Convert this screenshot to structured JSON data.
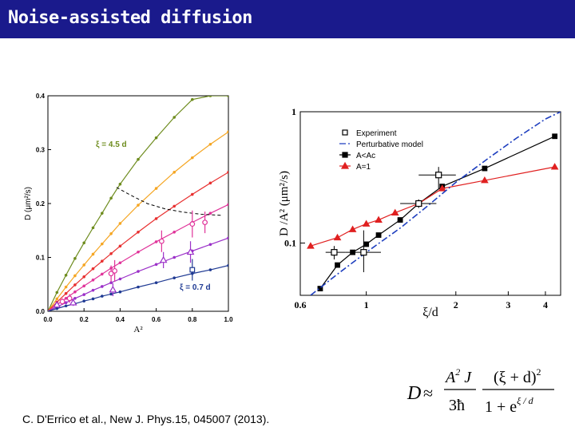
{
  "slide": {
    "title": "Noise-assisted diffusion",
    "citation": "C. D'Errico et al., New J. Phys.15, 045007 (2013).",
    "title_bar_color": "#1a1a8c"
  },
  "formula": {
    "lhs": "D",
    "approx": "≈",
    "num1": "A",
    "num1_sup": "2",
    "num1_rest": " J",
    "den1": "3ħ",
    "num2": "(ξ + d)",
    "num2_sup": "2",
    "den2_base": "1 + e",
    "den2_exp": "ξ / d"
  },
  "chart_data": [
    {
      "type": "line",
      "xlabel": "A²",
      "ylabel": "D (μm²/s)",
      "xlim": [
        0,
        1.0
      ],
      "ylim": [
        0,
        0.4
      ],
      "x_ticks": [
        "0.0",
        "0.2",
        "0.4",
        "0.6",
        "0.8",
        "1.0"
      ],
      "y_ticks": [
        "0.0",
        "0.1",
        "0.2",
        "0.3",
        "0.4"
      ],
      "annotations": {
        "top": "ξ = 4.5 d",
        "bottom": "ξ = 0.7 d"
      },
      "series": [
        {
          "color": "#6e8c1e",
          "x": [
            0.0,
            0.05,
            0.1,
            0.15,
            0.2,
            0.25,
            0.3,
            0.35,
            0.4,
            0.5,
            0.6,
            0.7,
            0.8,
            0.9,
            1.0
          ],
          "y": [
            0.0,
            0.035,
            0.067,
            0.098,
            0.127,
            0.155,
            0.182,
            0.21,
            0.236,
            0.282,
            0.322,
            0.36,
            0.393,
            0.4,
            0.4
          ]
        },
        {
          "color": "#f5a623",
          "x": [
            0.0,
            0.05,
            0.1,
            0.15,
            0.2,
            0.25,
            0.3,
            0.35,
            0.4,
            0.5,
            0.6,
            0.7,
            0.8,
            0.9,
            1.0
          ],
          "y": [
            0.0,
            0.023,
            0.045,
            0.066,
            0.086,
            0.106,
            0.125,
            0.144,
            0.163,
            0.197,
            0.228,
            0.258,
            0.285,
            0.31,
            0.333
          ]
        },
        {
          "color": "#e83030",
          "x": [
            0.0,
            0.05,
            0.1,
            0.15,
            0.2,
            0.25,
            0.3,
            0.35,
            0.4,
            0.5,
            0.6,
            0.7,
            0.8,
            0.9,
            1.0
          ],
          "y": [
            0.0,
            0.017,
            0.033,
            0.049,
            0.064,
            0.079,
            0.093,
            0.107,
            0.121,
            0.147,
            0.172,
            0.195,
            0.217,
            0.238,
            0.258
          ]
        },
        {
          "color": "#e0339a",
          "x": [
            0.0,
            0.05,
            0.1,
            0.15,
            0.2,
            0.25,
            0.3,
            0.35,
            0.4,
            0.5,
            0.6,
            0.7,
            0.8,
            0.9,
            1.0
          ],
          "y": [
            0.0,
            0.012,
            0.024,
            0.036,
            0.047,
            0.058,
            0.069,
            0.08,
            0.09,
            0.11,
            0.129,
            0.147,
            0.165,
            0.182,
            0.198
          ]
        },
        {
          "color": "#9b30c8",
          "x": [
            0.0,
            0.05,
            0.1,
            0.15,
            0.2,
            0.25,
            0.3,
            0.35,
            0.4,
            0.5,
            0.6,
            0.7,
            0.8,
            0.9,
            1.0
          ],
          "y": [
            0.0,
            0.008,
            0.016,
            0.024,
            0.031,
            0.039,
            0.046,
            0.053,
            0.06,
            0.074,
            0.087,
            0.1,
            0.112,
            0.124,
            0.136
          ]
        },
        {
          "color": "#1f3a93",
          "x": [
            0.0,
            0.05,
            0.1,
            0.15,
            0.2,
            0.25,
            0.3,
            0.35,
            0.4,
            0.5,
            0.6,
            0.7,
            0.8,
            0.9,
            1.0
          ],
          "y": [
            0.0,
            0.005,
            0.01,
            0.014,
            0.019,
            0.023,
            0.028,
            0.032,
            0.036,
            0.045,
            0.053,
            0.062,
            0.07,
            0.077,
            0.085
          ]
        }
      ],
      "dashed_curve": {
        "x": [
          0.38,
          0.45,
          0.55,
          0.65,
          0.75,
          0.85,
          0.97
        ],
        "y": [
          0.23,
          0.217,
          0.2,
          0.19,
          0.184,
          0.18,
          0.178
        ]
      },
      "experiment": [
        {
          "x": 0.05,
          "y": 0.012,
          "err": 0.005,
          "color": "#9b30c8",
          "marker": "triangle"
        },
        {
          "x": 0.08,
          "y": 0.018,
          "err": 0.006,
          "color": "#e0339a",
          "marker": "circle"
        },
        {
          "x": 0.12,
          "y": 0.024,
          "err": 0.008,
          "color": "#e0339a",
          "marker": "circle"
        },
        {
          "x": 0.14,
          "y": 0.016,
          "err": 0.006,
          "color": "#9b30c8",
          "marker": "triangle"
        },
        {
          "x": 0.35,
          "y": 0.07,
          "err": 0.015,
          "color": "#e0339a",
          "marker": "circle"
        },
        {
          "x": 0.37,
          "y": 0.075,
          "err": 0.02,
          "color": "#e0339a",
          "marker": "circle"
        },
        {
          "x": 0.36,
          "y": 0.04,
          "err": 0.012,
          "color": "#9b30c8",
          "marker": "triangle"
        },
        {
          "x": 0.63,
          "y": 0.13,
          "err": 0.02,
          "color": "#e0339a",
          "marker": "circle"
        },
        {
          "x": 0.64,
          "y": 0.095,
          "err": 0.015,
          "color": "#9b30c8",
          "marker": "triangle"
        },
        {
          "x": 0.8,
          "y": 0.162,
          "err": 0.025,
          "color": "#e0339a",
          "marker": "circle"
        },
        {
          "x": 0.79,
          "y": 0.11,
          "err": 0.02,
          "color": "#9b30c8",
          "marker": "triangle"
        },
        {
          "x": 0.87,
          "y": 0.165,
          "err": 0.02,
          "color": "#e0339a",
          "marker": "circle"
        },
        {
          "x": 0.8,
          "y": 0.077,
          "err": 0.02,
          "color": "#1f3a93",
          "marker": "square"
        }
      ]
    },
    {
      "type": "line",
      "xlabel": "ξ/d",
      "ylabel": "D /A² (μm²/s)",
      "x_scale": "log",
      "y_scale": "log",
      "xlim": [
        0.6,
        4.5
      ],
      "ylim": [
        0.04,
        1.0
      ],
      "x_ticks": [
        "0.6",
        "1",
        "2",
        "3",
        "4"
      ],
      "y_ticks": [
        "0.1",
        "1"
      ],
      "legend": [
        "Experiment",
        "Perturbative model",
        "A<Ac",
        "A=1"
      ],
      "legend_position": "top-left",
      "series": [
        {
          "name": "A<Ac",
          "color": "#000000",
          "marker": "square",
          "x": [
            0.7,
            0.8,
            0.9,
            1.0,
            1.1,
            1.3,
            1.5,
            1.8,
            2.5,
            4.3
          ],
          "y": [
            0.045,
            0.068,
            0.085,
            0.098,
            0.115,
            0.15,
            0.2,
            0.27,
            0.37,
            0.65
          ]
        },
        {
          "name": "A=1",
          "color": "#e02020",
          "marker": "triangle",
          "x": [
            0.65,
            0.8,
            0.9,
            1.0,
            1.1,
            1.25,
            1.5,
            1.8,
            2.5,
            4.3
          ],
          "y": [
            0.095,
            0.11,
            0.127,
            0.14,
            0.15,
            0.17,
            0.2,
            0.26,
            0.3,
            0.38
          ]
        },
        {
          "name": "Perturbative model",
          "color": "#1f3fbf",
          "dashed": true,
          "x": [
            0.65,
            0.8,
            1.0,
            1.3,
            1.6,
            2.0,
            2.6,
            3.2,
            4.0,
            4.5
          ],
          "y": [
            0.04,
            0.058,
            0.085,
            0.13,
            0.19,
            0.29,
            0.45,
            0.63,
            0.88,
            1.0
          ]
        }
      ],
      "experiment": [
        {
          "x": 0.78,
          "y": 0.085,
          "xerr": [
            0.73,
            0.85
          ],
          "yerr": [
            0.075,
            0.095
          ]
        },
        {
          "x": 0.98,
          "y": 0.085,
          "xerr": [
            0.85,
            1.12
          ],
          "yerr": [
            0.06,
            0.125
          ]
        },
        {
          "x": 1.5,
          "y": 0.2,
          "xerr": [
            1.3,
            1.72
          ],
          "yerr": [
            0.185,
            0.215
          ]
        },
        {
          "x": 1.75,
          "y": 0.33,
          "xerr": [
            1.5,
            2.0
          ],
          "yerr": [
            0.26,
            0.38
          ]
        }
      ]
    }
  ]
}
